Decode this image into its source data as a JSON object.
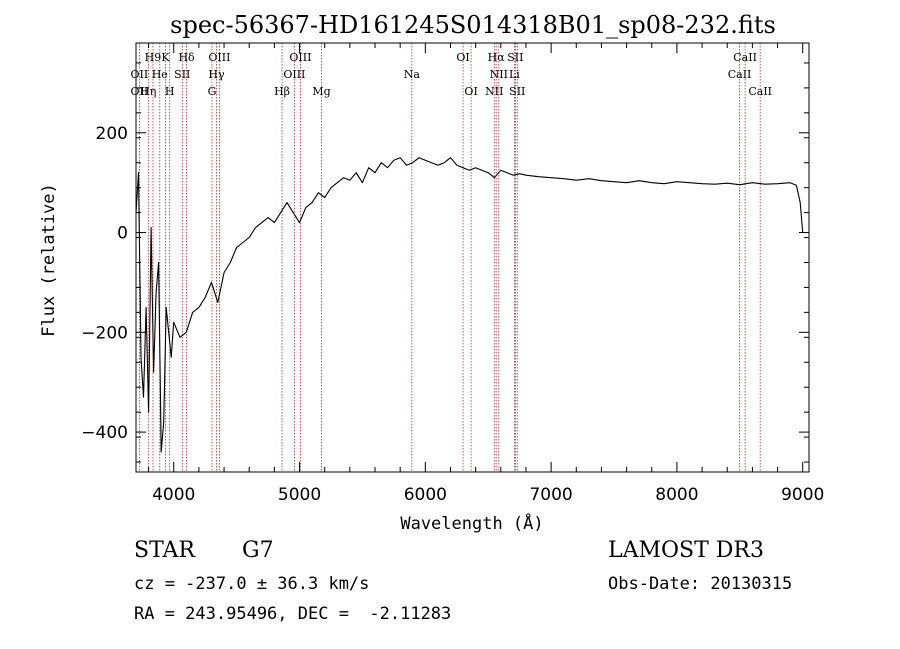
{
  "chart_data": {
    "type": "line",
    "title": "spec-56367-HD161245S014318B01_sp08-232.fits",
    "xlabel": "Wavelength (Å)",
    "ylabel": "Flux (relative)",
    "xlim": [
      3700,
      9050
    ],
    "ylim": [
      -480,
      380
    ],
    "xticks": [
      4000,
      5000,
      6000,
      7000,
      8000,
      9000
    ],
    "yticks": [
      -400,
      -200,
      0,
      200
    ],
    "grid": false,
    "series": [
      {
        "name": "spectrum",
        "x": [
          3700,
          3720,
          3740,
          3760,
          3780,
          3800,
          3820,
          3840,
          3860,
          3880,
          3900,
          3920,
          3940,
          3960,
          3980,
          4000,
          4050,
          4100,
          4150,
          4200,
          4250,
          4300,
          4350,
          4400,
          4450,
          4500,
          4550,
          4600,
          4650,
          4700,
          4750,
          4800,
          4850,
          4900,
          4950,
          5000,
          5050,
          5100,
          5150,
          5200,
          5250,
          5300,
          5350,
          5400,
          5450,
          5500,
          5550,
          5600,
          5650,
          5700,
          5750,
          5800,
          5850,
          5900,
          5950,
          6000,
          6050,
          6100,
          6150,
          6200,
          6250,
          6300,
          6350,
          6400,
          6450,
          6500,
          6550,
          6600,
          6650,
          6700,
          6750,
          6800,
          6900,
          7000,
          7100,
          7200,
          7300,
          7400,
          7500,
          7600,
          7700,
          7800,
          7900,
          8000,
          8100,
          8200,
          8300,
          8400,
          8500,
          8600,
          8700,
          8800,
          8900,
          8950,
          8980,
          9000
        ],
        "values": [
          40,
          120,
          -250,
          -330,
          -150,
          -360,
          10,
          -280,
          -120,
          -60,
          -440,
          -380,
          -150,
          -200,
          -250,
          -180,
          -210,
          -200,
          -160,
          -150,
          -130,
          -100,
          -140,
          -80,
          -60,
          -30,
          -20,
          -10,
          10,
          20,
          30,
          20,
          40,
          60,
          40,
          20,
          50,
          60,
          80,
          70,
          90,
          100,
          110,
          105,
          120,
          100,
          130,
          120,
          140,
          130,
          145,
          150,
          135,
          140,
          150,
          145,
          140,
          135,
          140,
          150,
          135,
          130,
          125,
          130,
          125,
          120,
          110,
          125,
          120,
          115,
          118,
          115,
          112,
          110,
          108,
          105,
          108,
          104,
          102,
          100,
          104,
          100,
          98,
          102,
          100,
          98,
          97,
          99,
          96,
          100,
          97,
          98,
          100,
          95,
          60,
          0
        ]
      }
    ],
    "line_labels": {
      "row1": [
        {
          "text": "H9",
          "x": 3835
        },
        {
          "text": "K",
          "x": 3934
        },
        {
          "text": "Hδ",
          "x": 4102
        },
        {
          "text": "OIII",
          "x": 4363
        },
        {
          "text": "OIII",
          "x": 5007
        },
        {
          "text": "OI",
          "x": 6300
        },
        {
          "text": "Hα",
          "x": 6563
        },
        {
          "text": "SII",
          "x": 6716
        },
        {
          "text": "CaII",
          "x": 8542
        }
      ],
      "row2": [
        {
          "text": "OII",
          "x": 3727
        },
        {
          "text": "He",
          "x": 3889
        },
        {
          "text": "SII",
          "x": 4068
        },
        {
          "text": "Hγ",
          "x": 4340
        },
        {
          "text": "OIII",
          "x": 4959
        },
        {
          "text": "Na",
          "x": 5893
        },
        {
          "text": "NII",
          "x": 6584
        },
        {
          "text": "Li",
          "x": 6708
        },
        {
          "text": "CaII",
          "x": 8498
        }
      ],
      "row3": [
        {
          "text": "OII",
          "x": 3727
        },
        {
          "text": "Hη",
          "x": 3798
        },
        {
          "text": "H",
          "x": 3968
        },
        {
          "text": "G",
          "x": 4304
        },
        {
          "text": "Hβ",
          "x": 4861
        },
        {
          "text": "Mg",
          "x": 5175
        },
        {
          "text": "OI",
          "x": 6364
        },
        {
          "text": "NII",
          "x": 6548
        },
        {
          "text": "SII",
          "x": 6731
        },
        {
          "text": "CaII",
          "x": 8662
        }
      ]
    },
    "line_marks": [
      3727,
      3798,
      3835,
      3889,
      3934,
      3968,
      4068,
      4102,
      4304,
      4340,
      4363,
      4861,
      4959,
      5007,
      5175,
      5893,
      6300,
      6364,
      6548,
      6563,
      6584,
      6708,
      6716,
      6731,
      8498,
      8542,
      8662
    ]
  },
  "info": {
    "class_label": "STAR",
    "subclass": "G7",
    "survey": "LAMOST DR3",
    "cz": "cz = -237.0 ± 36.3 km/s",
    "obs_date": "Obs-Date: 20130315",
    "coords": "RA = 243.95496, DEC =  -2.11283"
  },
  "colors": {
    "spectrum": "#000000",
    "line_mark": "#b03030",
    "axis": "#000000"
  }
}
